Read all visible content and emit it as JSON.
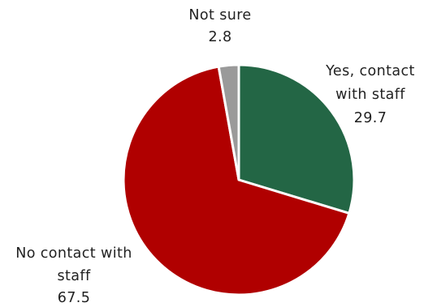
{
  "chart_data": {
    "type": "pie",
    "slices": [
      {
        "label_lines": [
          "Yes, contact",
          "with staff"
        ],
        "value": 29.7,
        "value_text": "29.7",
        "color": "#236645"
      },
      {
        "label_lines": [
          "No contact with",
          "staff"
        ],
        "value": 67.5,
        "value_text": "67.5",
        "color": "#b00000"
      },
      {
        "label_lines": [
          "Not sure"
        ],
        "value": 2.8,
        "value_text": "2.8",
        "color": "#9a9a9a"
      }
    ],
    "start": "12 o'clock",
    "direction": "clockwise"
  }
}
